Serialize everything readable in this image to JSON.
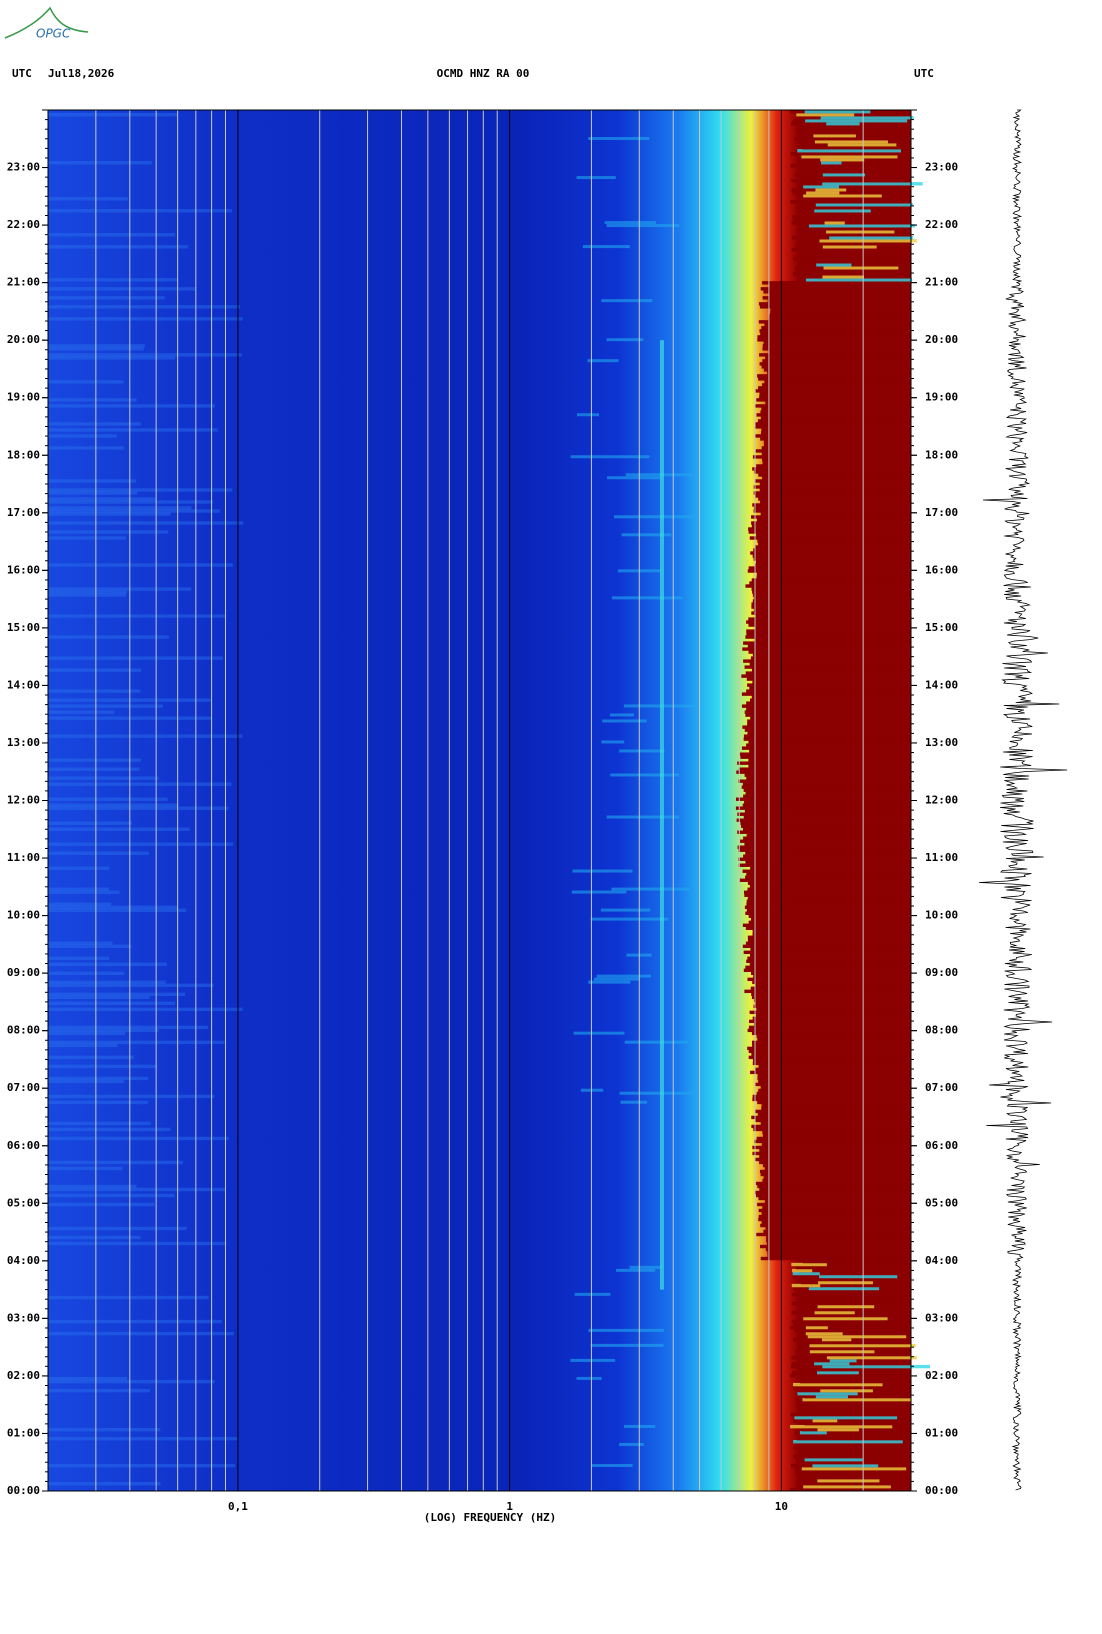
{
  "logo": "OPGC",
  "chart_data": {
    "type": "spectrogram",
    "title": "OCMD HNZ RA 00",
    "date": "Jul18,2026",
    "left_label": "UTC",
    "right_label": "UTC",
    "xlabel": "(LOG) FREQUENCY (HZ)",
    "xscale": "log",
    "xlim": [
      0.02,
      30
    ],
    "xticks": [
      {
        "value": 0.1,
        "label": "0,1"
      },
      1,
      10
    ],
    "ylim": [
      0,
      24
    ],
    "yticks": [
      {
        "value": 0,
        "label": "00:00"
      },
      {
        "value": 1,
        "label": "01:00"
      },
      {
        "value": 2,
        "label": "02:00"
      },
      {
        "value": 3,
        "label": "03:00"
      },
      {
        "value": 4,
        "label": "04:00"
      },
      {
        "value": 5,
        "label": "05:00"
      },
      {
        "value": 6,
        "label": "06:00"
      },
      {
        "value": 7,
        "label": "07:00"
      },
      {
        "value": 8,
        "label": "08:00"
      },
      {
        "value": 9,
        "label": "09:00"
      },
      {
        "value": 10,
        "label": "10:00"
      },
      {
        "value": 11,
        "label": "11:00"
      },
      {
        "value": 12,
        "label": "12:00"
      },
      {
        "value": 13,
        "label": "13:00"
      },
      {
        "value": 14,
        "label": "14:00"
      },
      {
        "value": 15,
        "label": "15:00"
      },
      {
        "value": 16,
        "label": "16:00"
      },
      {
        "value": 17,
        "label": "17:00"
      },
      {
        "value": 18,
        "label": "18:00"
      },
      {
        "value": 19,
        "label": "19:00"
      },
      {
        "value": 20,
        "label": "20:00"
      },
      {
        "value": 21,
        "label": "21:00"
      },
      {
        "value": 22,
        "label": "22:00"
      },
      {
        "value": 23,
        "label": "23:00"
      }
    ],
    "grid": true
  }
}
